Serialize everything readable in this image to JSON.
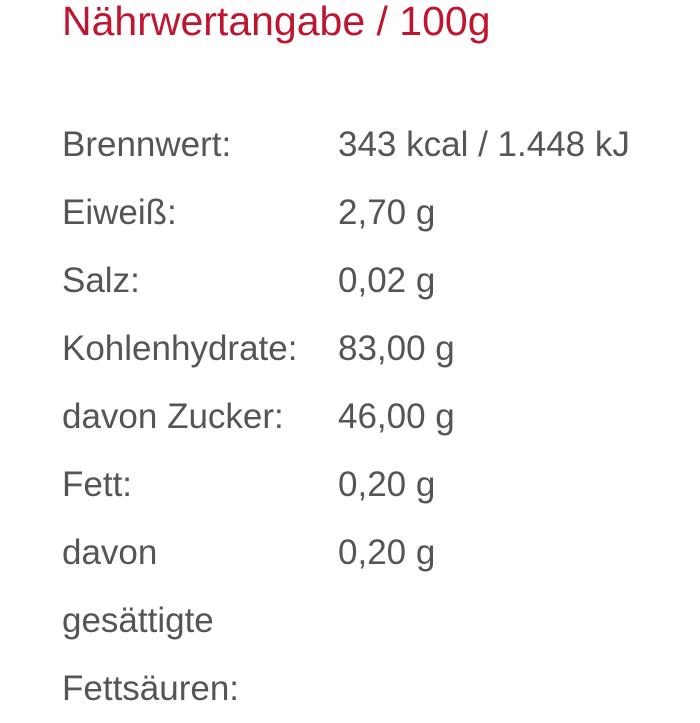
{
  "title": "Nährwertangabe / 100g",
  "colors": {
    "title": "#c0152f",
    "text": "#555555"
  },
  "rows": [
    {
      "label": "Brennwert:",
      "value": "343 kcal / 1.448 kJ"
    },
    {
      "label": "Eiweiß:",
      "value": "2,70 g"
    },
    {
      "label": "Salz:",
      "value": "0,02 g"
    },
    {
      "label": "Kohlenhydrate:",
      "value": "83,00 g"
    },
    {
      "label": "davon Zucker:",
      "value": "46,00 g"
    },
    {
      "label": "Fett:",
      "value": "0,20 g"
    },
    {
      "label": "davon",
      "value": "0,20 g"
    },
    {
      "label": "gesättigte",
      "value": ""
    },
    {
      "label": "Fettsäuren:",
      "value": ""
    }
  ]
}
